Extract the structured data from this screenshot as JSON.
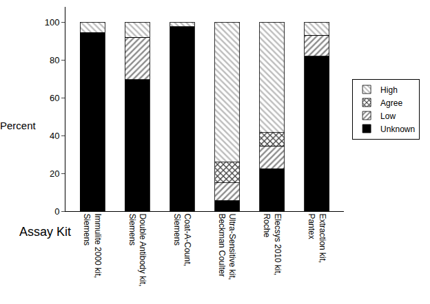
{
  "chart_data": {
    "type": "bar",
    "stacked": true,
    "y_label": "Percent",
    "x_label": "Assay Kit",
    "categories": [
      "Immulite 2000 kit,\nSiemens",
      "Double Antibody kit,\nSiemens",
      "Coat-A-Count,\nSiemens",
      "Ultra-Sensitive kit,\nBeckman Coulter",
      "Elecsys 2010 kit,\nRoche",
      "Extraction kit,\nPantex"
    ],
    "series": [
      {
        "name": "Unknown",
        "color": "#000000",
        "values": [
          94.5,
          69.5,
          97.5,
          5.5,
          22.5,
          82
        ]
      },
      {
        "name": "Low",
        "color": "#8c8c8c",
        "values": [
          0,
          22.5,
          0,
          9.5,
          12,
          11
        ]
      },
      {
        "name": "Agree",
        "color": "#404040",
        "values": [
          0,
          0,
          0,
          11,
          7,
          0
        ]
      },
      {
        "name": "High",
        "color": "#bdbdbd",
        "values": [
          5.5,
          8,
          2.5,
          74,
          58.5,
          7
        ]
      }
    ],
    "ylim": [
      0,
      108
    ],
    "yticks": [
      0,
      20,
      40,
      60,
      80,
      100
    ],
    "grid": false,
    "legend": "right"
  }
}
